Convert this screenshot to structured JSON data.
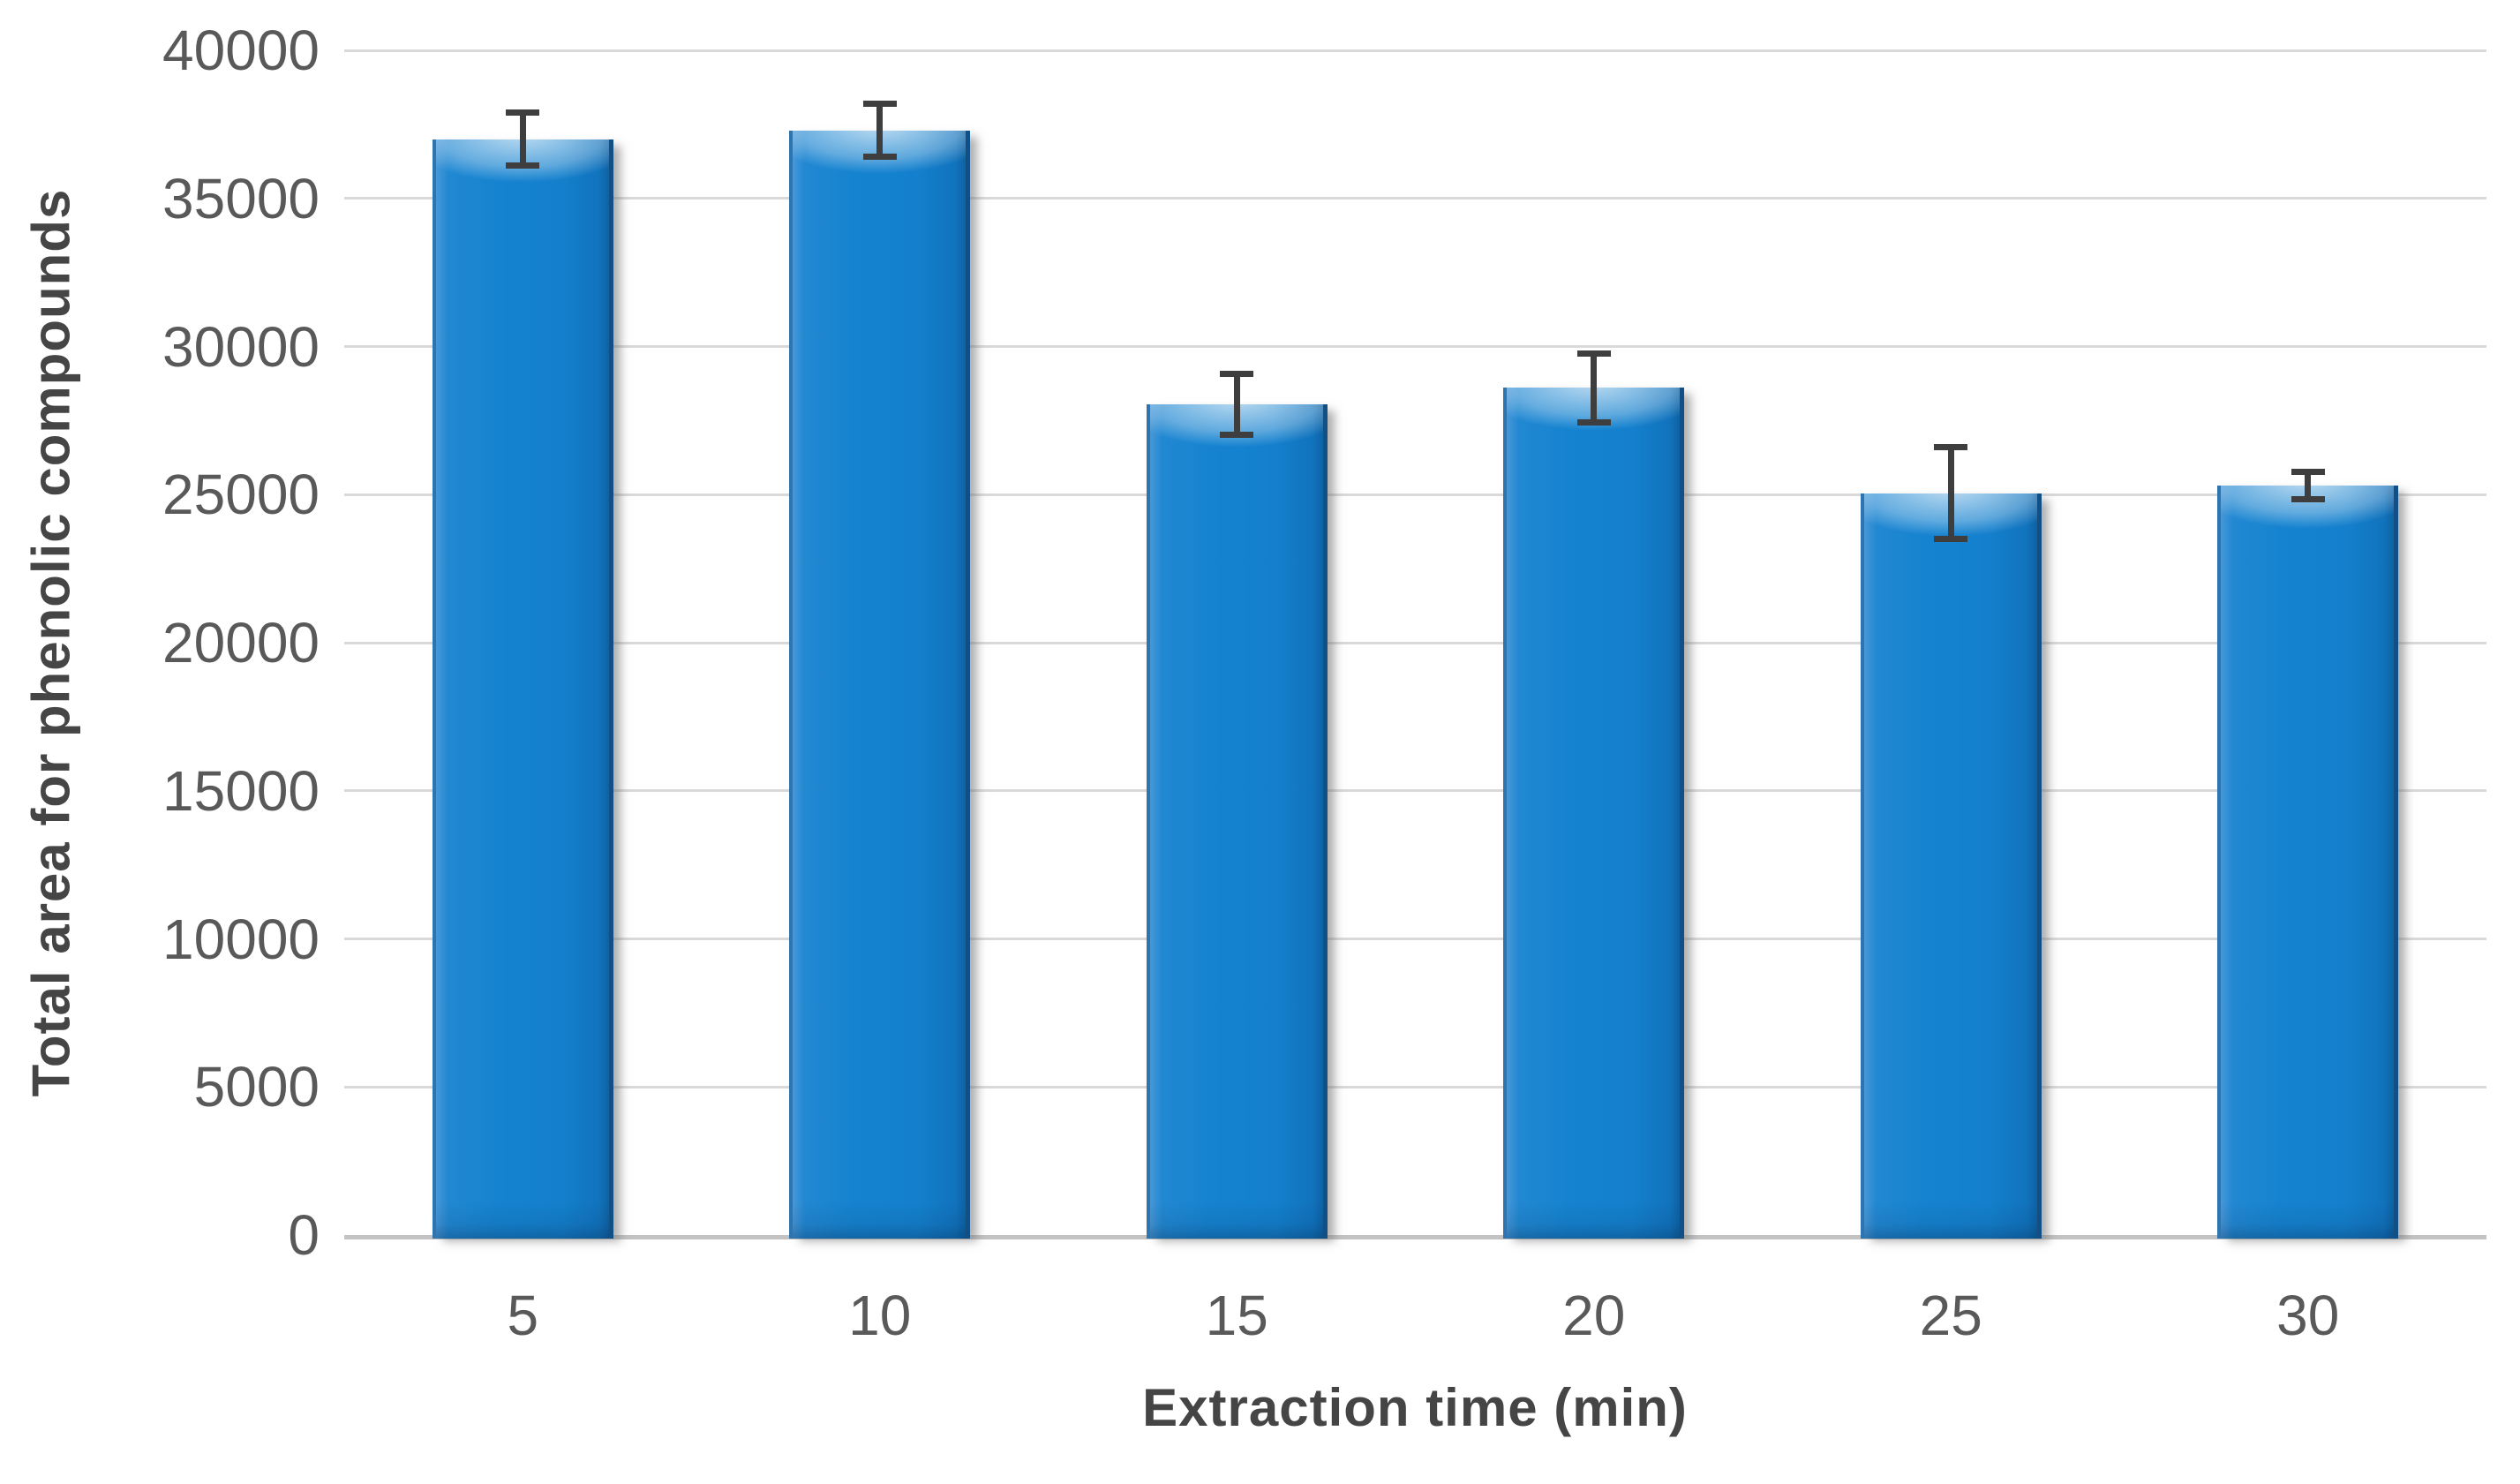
{
  "chart_data": {
    "type": "bar",
    "title": "",
    "xlabel": "Extraction time (min)",
    "ylabel": "Total area for phenolic compounds",
    "categories": [
      "5",
      "10",
      "15",
      "20",
      "25",
      "30"
    ],
    "series": [
      {
        "name": "Total area for phenolic compounds",
        "values": [
          37000,
          37300,
          28050,
          28600,
          25050,
          25300
        ],
        "error_bars": [
          900,
          900,
          1030,
          1150,
          1550,
          460
        ]
      }
    ],
    "ylim": [
      0,
      40000
    ],
    "ytick_step": 5000,
    "ytick_labels": [
      "0",
      "5000",
      "10000",
      "15000",
      "20000",
      "25000",
      "30000",
      "35000",
      "40000"
    ],
    "grid": true,
    "legend": "none",
    "colors": {
      "bar_fill": "#1583d0",
      "bar_edge_dark": "#114f84",
      "bar_highlight": "#7fb9e8",
      "error_bar": "#3e3e3e",
      "gridline": "#d9d9d9",
      "axis_line": "#c3c3c3",
      "tick_text": "#595959",
      "title_text": "#454545"
    }
  }
}
